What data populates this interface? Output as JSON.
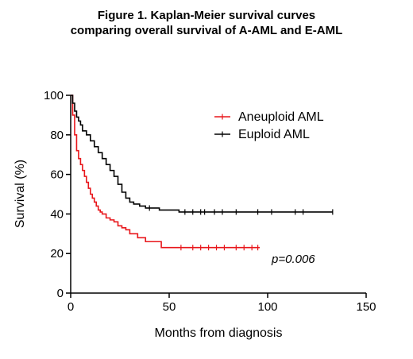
{
  "chart_data": {
    "type": "line",
    "title_line1": "Figure 1. Kaplan-Meier survival curves",
    "title_line2": "comparing overall survival of A-AML and E-AML",
    "xlabel": "Months from diagnosis",
    "ylabel": "Survival (%)",
    "xlim": [
      0,
      150
    ],
    "ylim": [
      0,
      100
    ],
    "xticks": [
      0,
      50,
      100,
      150
    ],
    "yticks": [
      0,
      20,
      40,
      60,
      80,
      100
    ],
    "xtick_labels": [
      "0",
      "50",
      "100",
      "150"
    ],
    "ytick_labels": [
      "0",
      "20",
      "40",
      "60",
      "80",
      "100"
    ],
    "grid": false,
    "legend_position": "top-right",
    "annotation": "p=0.006",
    "series": [
      {
        "name": "Aneuploid AML",
        "color": "#e8161b",
        "step_x": [
          0,
          1,
          2,
          3,
          4,
          5,
          6,
          7,
          8,
          9,
          10,
          11,
          12,
          13,
          14,
          15,
          16,
          18,
          20,
          22,
          24,
          26,
          28,
          30,
          34,
          38,
          46,
          96
        ],
        "step_y": [
          100,
          90,
          80,
          72,
          68,
          65,
          62,
          59,
          56,
          53,
          50,
          48,
          46,
          44,
          42,
          41,
          40,
          38,
          37,
          36,
          34,
          33,
          32,
          30,
          28,
          26,
          23,
          23
        ],
        "censor_x": [
          56,
          62,
          66,
          70,
          74,
          78,
          84,
          88,
          92,
          95
        ],
        "censor_y": [
          23,
          23,
          23,
          23,
          23,
          23,
          23,
          23,
          23,
          23
        ]
      },
      {
        "name": "Euploid AML",
        "color": "#000000",
        "step_x": [
          0,
          1,
          2,
          3,
          4,
          5,
          6,
          8,
          10,
          12,
          14,
          16,
          18,
          20,
          22,
          24,
          26,
          28,
          30,
          32,
          35,
          38,
          45,
          55,
          133
        ],
        "step_y": [
          100,
          96,
          92,
          89,
          87,
          85,
          82,
          80,
          77,
          74,
          71,
          68,
          65,
          62,
          59,
          55,
          51,
          48,
          46,
          45,
          44,
          43,
          42,
          41,
          41
        ],
        "censor_x": [
          40,
          58,
          62,
          66,
          68,
          73,
          77,
          84,
          95,
          102,
          114,
          118,
          133
        ],
        "censor_y": [
          43,
          41,
          41,
          41,
          41,
          41,
          41,
          41,
          41,
          41,
          41,
          41,
          41
        ]
      }
    ]
  }
}
